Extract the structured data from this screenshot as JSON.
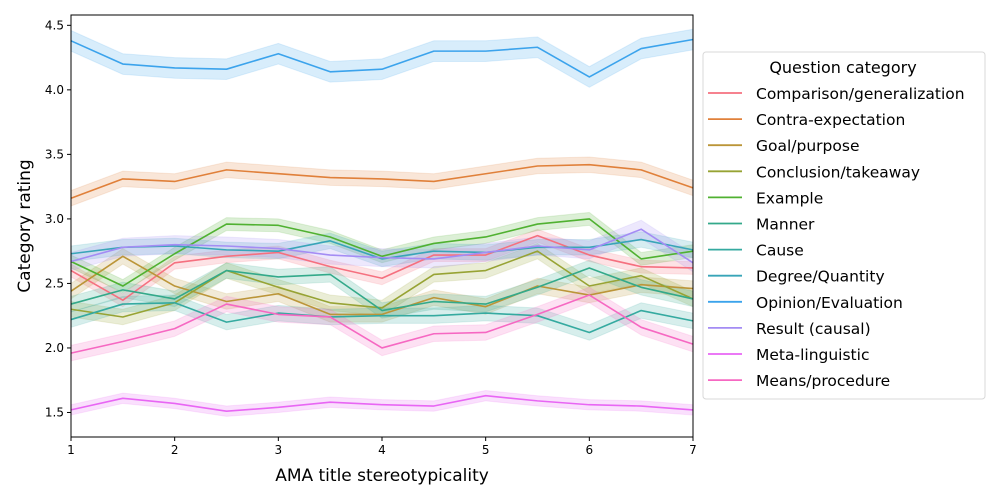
{
  "chart_data": {
    "type": "line",
    "title": "",
    "xlabel": "AMA title stereotypicality",
    "ylabel": "Category rating",
    "xlim": [
      1,
      7
    ],
    "ylim": [
      1.31,
      4.58
    ],
    "xticks": [
      1,
      2,
      3,
      4,
      5,
      6,
      7
    ],
    "xtick_labels": [
      "1",
      "2",
      "3",
      "4",
      "5",
      "6",
      "7"
    ],
    "yticks": [
      1.5,
      2.0,
      2.5,
      3.0,
      3.5,
      4.0,
      4.5
    ],
    "ytick_labels": [
      "1.5",
      "2.0",
      "2.5",
      "3.0",
      "3.5",
      "4.0",
      "4.5"
    ],
    "grid": false,
    "legend": {
      "title": "Question category",
      "placement": "right-outside"
    },
    "x": [
      1,
      1.5,
      2,
      2.5,
      3,
      3.5,
      4,
      4.5,
      5,
      5.5,
      6,
      6.5,
      7
    ],
    "series": [
      {
        "name": "Comparison/generalization",
        "color": "#f5707f",
        "ci": 0.05,
        "values": [
          2.6,
          2.37,
          2.66,
          2.71,
          2.74,
          2.63,
          2.54,
          2.72,
          2.72,
          2.87,
          2.72,
          2.63,
          2.62
        ]
      },
      {
        "name": "Contra-expectation",
        "color": "#e0803a",
        "ci": 0.06,
        "values": [
          3.16,
          3.31,
          3.29,
          3.38,
          3.35,
          3.32,
          3.31,
          3.29,
          3.35,
          3.41,
          3.42,
          3.38,
          3.24
        ]
      },
      {
        "name": "Goal/purpose",
        "color": "#bb9538",
        "ci": 0.06,
        "values": [
          2.44,
          2.71,
          2.48,
          2.36,
          2.42,
          2.26,
          2.26,
          2.39,
          2.32,
          2.48,
          2.41,
          2.49,
          2.46
        ]
      },
      {
        "name": "Conclusion/takeaway",
        "color": "#97a334",
        "ci": 0.06,
        "values": [
          2.3,
          2.24,
          2.35,
          2.6,
          2.47,
          2.35,
          2.31,
          2.57,
          2.6,
          2.75,
          2.48,
          2.56,
          2.38
        ]
      },
      {
        "name": "Example",
        "color": "#50b131",
        "ci": 0.05,
        "values": [
          2.67,
          2.48,
          2.73,
          2.96,
          2.95,
          2.86,
          2.71,
          2.81,
          2.86,
          2.96,
          3.0,
          2.69,
          2.75
        ]
      },
      {
        "name": "Manner",
        "color": "#33a98a",
        "ci": 0.06,
        "values": [
          2.34,
          2.45,
          2.38,
          2.6,
          2.55,
          2.57,
          2.29,
          2.36,
          2.34,
          2.47,
          2.62,
          2.47,
          2.38
        ]
      },
      {
        "name": "Cause",
        "color": "#35aaa0",
        "ci": 0.06,
        "values": [
          2.22,
          2.34,
          2.35,
          2.2,
          2.27,
          2.24,
          2.25,
          2.25,
          2.27,
          2.25,
          2.12,
          2.29,
          2.21
        ]
      },
      {
        "name": "Degree/Quantity",
        "color": "#38a5b8",
        "ci": 0.06,
        "values": [
          2.73,
          2.78,
          2.79,
          2.76,
          2.75,
          2.83,
          2.69,
          2.75,
          2.74,
          2.78,
          2.78,
          2.84,
          2.76
        ]
      },
      {
        "name": "Opinion/Evaluation",
        "color": "#3ba3ec",
        "ci": 0.08,
        "values": [
          4.38,
          4.2,
          4.17,
          4.16,
          4.28,
          4.14,
          4.16,
          4.3,
          4.3,
          4.33,
          4.1,
          4.32,
          4.39
        ]
      },
      {
        "name": "Result (causal)",
        "color": "#a48cf4",
        "ci": 0.07,
        "values": [
          2.67,
          2.78,
          2.8,
          2.79,
          2.77,
          2.72,
          2.7,
          2.69,
          2.74,
          2.79,
          2.76,
          2.92,
          2.66
        ]
      },
      {
        "name": "Meta-linguistic",
        "color": "#e866f4",
        "ci": 0.04,
        "values": [
          1.52,
          1.61,
          1.57,
          1.51,
          1.54,
          1.58,
          1.56,
          1.55,
          1.63,
          1.59,
          1.56,
          1.55,
          1.52
        ]
      },
      {
        "name": "Means/procedure",
        "color": "#f668c2",
        "ci": 0.06,
        "values": [
          1.96,
          2.05,
          2.15,
          2.34,
          2.26,
          2.24,
          2.0,
          2.11,
          2.12,
          2.26,
          2.41,
          2.16,
          2.03
        ]
      }
    ]
  }
}
